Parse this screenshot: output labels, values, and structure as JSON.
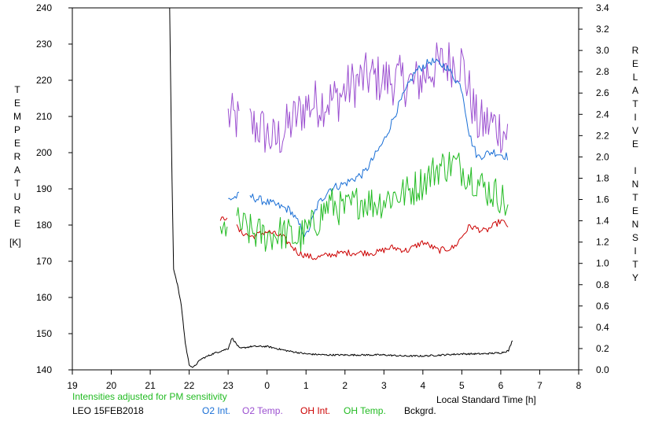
{
  "chart_data": {
    "type": "line",
    "left_axis": {
      "label": "TEMPERATURE",
      "unit": "[K]",
      "ylim": [
        140,
        240
      ],
      "ticks": [
        140,
        150,
        160,
        170,
        180,
        190,
        200,
        210,
        220,
        230,
        240
      ]
    },
    "right_axis": {
      "label": "RELATIVE INTENSITY",
      "ylim": [
        0.0,
        3.4
      ],
      "ticks": [
        "0.0",
        "0.2",
        "0.4",
        "0.6",
        "0.8",
        "1.0",
        "1.2",
        "1.4",
        "1.6",
        "1.8",
        "2.0",
        "2.2",
        "2.4",
        "2.6",
        "2.8",
        "3.0",
        "3.2",
        "3.4"
      ]
    },
    "x_axis": {
      "label": "Local Standard Time [h]",
      "xlim": [
        19,
        8
      ],
      "ticks": [
        "19",
        "20",
        "21",
        "22",
        "23",
        "0",
        "1",
        "2",
        "3",
        "4",
        "5",
        "6",
        "7",
        "8"
      ]
    },
    "notes": {
      "adjust_note": "Intensities adjusted for PM sensitivity",
      "station": "LEO 15FEB2018"
    },
    "legend": {
      "placement": "bottom",
      "items": [
        {
          "label": "O2 Int.",
          "color": "#1a6fd6"
        },
        {
          "label": "O2 Temp.",
          "color": "#9b4fd0"
        },
        {
          "label": "OH Int.",
          "color": "#cc0000"
        },
        {
          "label": "OH Temp.",
          "color": "#22bb22"
        },
        {
          "label": "Bckgrd.",
          "color": "#000000"
        }
      ]
    },
    "series": [
      {
        "name": "O2 Temp.",
        "axis": "left",
        "color": "#9b4fd0",
        "noise": 7,
        "x": [
          23.0,
          23.4,
          23.8,
          24.2,
          24.6,
          25.0,
          25.4,
          25.8,
          26.2,
          26.6,
          27.0,
          27.4,
          27.8,
          28.2,
          28.6,
          29.0,
          29.4,
          29.8,
          30.2
        ],
        "y": [
          210,
          208,
          207,
          203,
          208,
          213,
          214,
          215,
          219,
          221,
          220,
          220,
          219,
          223,
          225,
          225,
          208,
          208,
          205
        ],
        "gaps": [
          [
            23.3,
            23.55
          ]
        ]
      },
      {
        "name": "O2 Int.",
        "axis": "right",
        "color": "#1a6fd6",
        "noise": 0.04,
        "x": [
          23.0,
          23.4,
          23.8,
          24.2,
          24.6,
          25.0,
          25.3,
          25.6,
          26.0,
          26.5,
          27.0,
          27.4,
          27.8,
          28.2,
          28.6,
          29.0,
          29.2,
          29.4,
          29.8,
          30.2
        ],
        "y": [
          1.6,
          1.65,
          1.6,
          1.55,
          1.5,
          1.25,
          1.55,
          1.7,
          1.75,
          1.85,
          2.15,
          2.5,
          2.8,
          2.9,
          2.85,
          2.65,
          2.2,
          2.0,
          2.05,
          2.0
        ],
        "gaps": [
          [
            23.3,
            23.55
          ]
        ]
      },
      {
        "name": "OH Int.",
        "axis": "right",
        "color": "#cc0000",
        "noise": 0.03,
        "x": [
          22.8,
          23.0,
          23.3,
          23.6,
          24.0,
          24.4,
          24.8,
          25.2,
          25.6,
          26.0,
          26.4,
          26.8,
          27.2,
          27.6,
          28.0,
          28.4,
          28.8,
          29.2,
          29.6,
          30.0,
          30.2
        ],
        "y": [
          1.4,
          1.45,
          1.3,
          1.25,
          1.3,
          1.25,
          1.1,
          1.05,
          1.08,
          1.1,
          1.1,
          1.1,
          1.15,
          1.12,
          1.2,
          1.12,
          1.15,
          1.35,
          1.3,
          1.4,
          1.35
        ],
        "gaps": [
          [
            23.0,
            23.2
          ]
        ]
      },
      {
        "name": "OH Temp.",
        "axis": "left",
        "color": "#22bb22",
        "noise": 5,
        "x": [
          22.8,
          23.0,
          23.3,
          23.6,
          24.0,
          24.4,
          24.8,
          25.2,
          25.6,
          26.0,
          26.4,
          26.8,
          27.2,
          27.6,
          28.0,
          28.4,
          28.8,
          29.2,
          29.6,
          30.0,
          30.2
        ],
        "y": [
          175,
          182,
          180,
          178,
          177,
          178,
          176,
          180,
          186,
          184,
          187,
          186,
          188,
          189,
          192,
          196,
          197,
          194,
          190,
          188,
          184
        ],
        "gaps": [
          [
            23.0,
            23.2
          ]
        ]
      },
      {
        "name": "Bckgrd.",
        "axis": "right",
        "color": "#000000",
        "noise": 0.008,
        "x": [
          21.5,
          21.55,
          21.6,
          21.7,
          21.8,
          21.9,
          22.0,
          22.1,
          22.3,
          22.6,
          23.0,
          23.1,
          23.3,
          23.6,
          24.0,
          24.5,
          25.0,
          25.5,
          26.0,
          26.5,
          27.0,
          27.5,
          28.0,
          28.5,
          29.0,
          29.5,
          30.0,
          30.2,
          30.3
        ],
        "y": [
          3.4,
          2.0,
          0.95,
          0.8,
          0.6,
          0.25,
          0.05,
          0.02,
          0.1,
          0.15,
          0.2,
          0.3,
          0.2,
          0.22,
          0.22,
          0.18,
          0.15,
          0.14,
          0.14,
          0.14,
          0.14,
          0.13,
          0.13,
          0.14,
          0.15,
          0.15,
          0.16,
          0.18,
          0.28
        ],
        "gaps": []
      }
    ]
  }
}
